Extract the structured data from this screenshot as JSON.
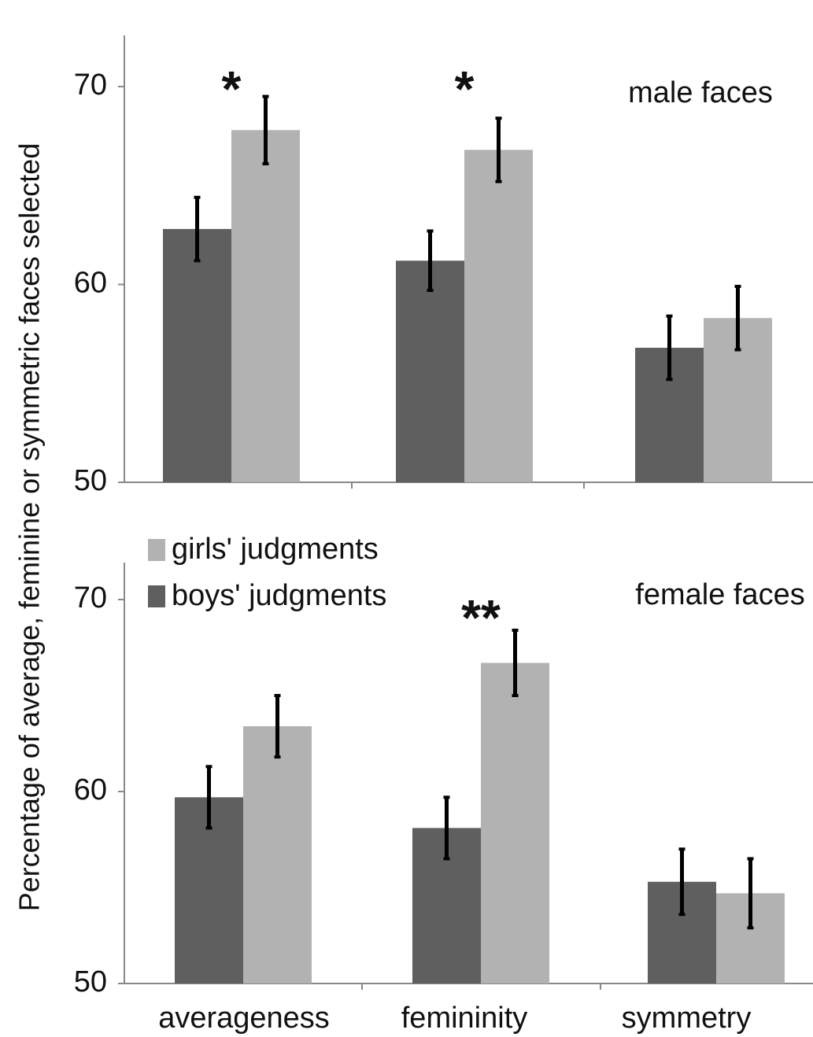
{
  "chart_data": [
    {
      "type": "bar",
      "panel_label": "male faces",
      "ylabel": "Percentage of average, feminine or symmetric faces selected",
      "ylim": [
        50,
        72
      ],
      "yticks": [
        50,
        60,
        70
      ],
      "categories": [
        "averageness",
        "femininity",
        "symmetry"
      ],
      "series": [
        {
          "name": "boys' judgments",
          "color": "#5f5f5f",
          "values": [
            62.8,
            61.2,
            56.8
          ],
          "errors": [
            1.6,
            1.5,
            1.6
          ]
        },
        {
          "name": "girls' judgments",
          "color": "#b2b2b2",
          "values": [
            67.8,
            66.8,
            58.3
          ],
          "errors": [
            1.7,
            1.6,
            1.6
          ]
        }
      ],
      "significance": [
        "*",
        "*",
        ""
      ]
    },
    {
      "type": "bar",
      "panel_label": "female faces",
      "ylabel": "Percentage of average, feminine or symmetric faces selected",
      "ylim": [
        50,
        70.5
      ],
      "yticks": [
        50,
        60,
        70
      ],
      "categories": [
        "averageness",
        "femininity",
        "symmetry"
      ],
      "series": [
        {
          "name": "boys' judgments",
          "color": "#5f5f5f",
          "values": [
            59.7,
            58.1,
            55.3
          ],
          "errors": [
            1.6,
            1.6,
            1.7
          ]
        },
        {
          "name": "girls' judgments",
          "color": "#b2b2b2",
          "values": [
            63.4,
            66.7,
            54.7
          ],
          "errors": [
            1.6,
            1.7,
            1.8
          ]
        }
      ],
      "significance": [
        "",
        "**",
        ""
      ]
    }
  ],
  "legend": {
    "items": [
      {
        "label": "girls' judgments",
        "color": "#b2b2b2"
      },
      {
        "label": "boys' judgments",
        "color": "#5f5f5f"
      }
    ]
  },
  "ylabel": "Percentage of average, feminine or symmetric faces selected"
}
